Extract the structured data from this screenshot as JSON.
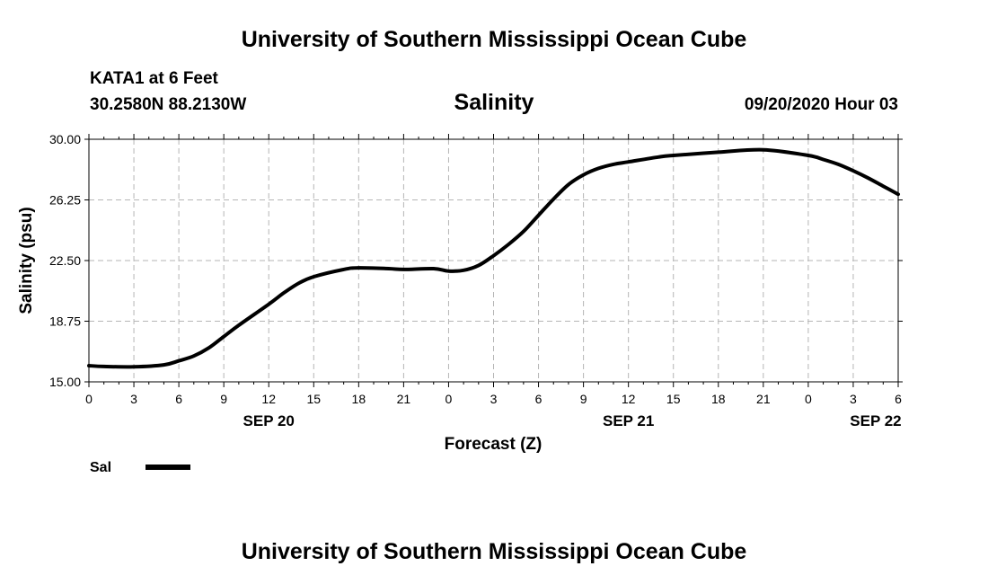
{
  "header": {
    "org_title": "University of Southern Mississippi Ocean Cube",
    "station": "KATA1 at 6 Feet",
    "coords": "30.2580N 88.2130W",
    "timestamp": "09/20/2020 Hour 03",
    "footer_title": "University of Southern Mississippi Ocean Cube"
  },
  "chart_data": {
    "type": "line",
    "title": "Salinity",
    "xlabel": "Forecast (Z)",
    "ylabel": "Salinity (psu)",
    "ylim": [
      15.0,
      30.0
    ],
    "xlim": [
      0,
      54
    ],
    "y_ticks": [
      "15.00",
      "18.75",
      "22.50",
      "26.25",
      "30.00"
    ],
    "x_tick_labels": [
      "0",
      "3",
      "6",
      "9",
      "12",
      "15",
      "18",
      "21",
      "0",
      "3",
      "6",
      "9",
      "12",
      "15",
      "18",
      "21",
      "0",
      "3",
      "6"
    ],
    "date_labels": [
      {
        "label": "SEP 20",
        "hour": 12
      },
      {
        "label": "SEP 21",
        "hour": 36
      },
      {
        "label": "SEP 22",
        "hour": 52.5
      }
    ],
    "grid": true,
    "legend_position": "bottom-left",
    "series": [
      {
        "name": "Sal",
        "color": "#000000",
        "x": [
          0,
          1,
          3,
          5,
          6,
          7,
          8,
          9,
          10,
          12,
          13,
          14,
          15,
          17,
          18,
          20,
          21,
          23,
          24,
          25,
          26,
          27,
          28,
          29,
          30,
          31,
          32,
          33,
          34,
          35,
          36,
          38,
          39,
          42,
          45,
          48,
          49,
          50,
          51,
          52,
          53,
          54
        ],
        "values": [
          16.0,
          15.95,
          15.93,
          16.05,
          16.3,
          16.6,
          17.1,
          17.8,
          18.5,
          19.8,
          20.5,
          21.1,
          21.5,
          21.95,
          22.05,
          22.0,
          21.95,
          22.0,
          21.85,
          21.9,
          22.2,
          22.8,
          23.5,
          24.3,
          25.3,
          26.3,
          27.2,
          27.8,
          28.2,
          28.45,
          28.6,
          28.9,
          29.0,
          29.2,
          29.35,
          29.0,
          28.75,
          28.45,
          28.05,
          27.6,
          27.1,
          26.6
        ]
      }
    ]
  }
}
